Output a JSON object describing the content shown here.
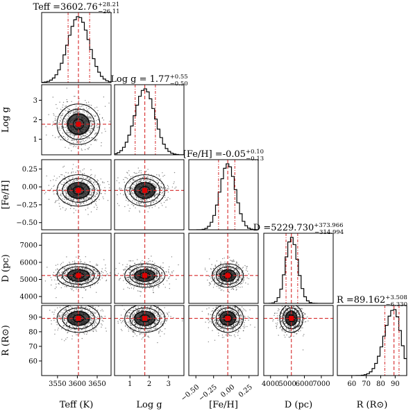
{
  "chart_data": {
    "type": "corner",
    "parameters": [
      {
        "key": "teff",
        "label": "Teff (K)",
        "ylabel": "",
        "range": [
          3510,
          3685
        ],
        "ticks": [
          3550,
          3600,
          3650
        ],
        "tick_labels": [
          "3550",
          "3600",
          "3650"
        ],
        "median": 3602.76,
        "err_plus": 28.21,
        "err_minus": 26.11,
        "spread": 27,
        "title": "Teff =3602.76",
        "title_up": "+28.21",
        "title_down": "−26.11"
      },
      {
        "key": "logg",
        "label": "Log g",
        "ylabel": "Log g",
        "range": [
          0.2,
          3.8
        ],
        "ticks": [
          1,
          2,
          3
        ],
        "tick_labels": [
          "1",
          "2",
          "3"
        ],
        "median": 1.77,
        "err_plus": 0.55,
        "err_minus": 0.5,
        "spread": 0.52,
        "title": "Log g = 1.77",
        "title_up": "+0.55",
        "title_down": "−0.50"
      },
      {
        "key": "feh",
        "label": "[Fe/H]",
        "ylabel": "[Fe/H]",
        "range": [
          -0.6,
          0.38
        ],
        "ticks": [
          -0.5,
          -0.25,
          0.0,
          0.25
        ],
        "tick_labels": [
          "−0.50",
          "−0.25",
          "0.00",
          "0.25"
        ],
        "median": -0.05,
        "err_plus": 0.1,
        "err_minus": 0.13,
        "spread": 0.11,
        "title": "[Fe/H] =-0.05",
        "title_up": "+0.10",
        "title_down": "−0.13"
      },
      {
        "key": "dist",
        "label": "D (pc)",
        "ylabel": "D (pc)",
        "range": [
          3600,
          7700
        ],
        "ticks": [
          4000,
          5000,
          6000,
          7000
        ],
        "tick_labels": [
          "4000",
          "5000",
          "6000",
          "7000"
        ],
        "median": 5229.73,
        "err_plus": 373.966,
        "err_minus": 314.994,
        "spread": 345,
        "title": "D =5229.730",
        "title_up": "+373.966",
        "title_down": "−314.994"
      },
      {
        "key": "rad",
        "label": "R (R⊙)",
        "ylabel": "R (R⊙)",
        "range": [
          50,
          98
        ],
        "ticks": [
          60,
          70,
          80,
          90
        ],
        "tick_labels": [
          "60",
          "70",
          "80",
          "90"
        ],
        "median": 89.162,
        "err_plus": 3.508,
        "err_minus": 6.33,
        "spread": 4.8,
        "title": "R =89.162",
        "title_up": "+3.508",
        "title_down": "−6.330"
      }
    ],
    "truths": [
      3602.76,
      1.77,
      -0.05,
      5229.73,
      89.162
    ],
    "quantiles": [
      0.16,
      0.5,
      0.84
    ],
    "grid": false
  },
  "colors": {
    "truth": "#d62728",
    "marker": "#e00000",
    "points": "#222222",
    "contour": "#000000"
  }
}
